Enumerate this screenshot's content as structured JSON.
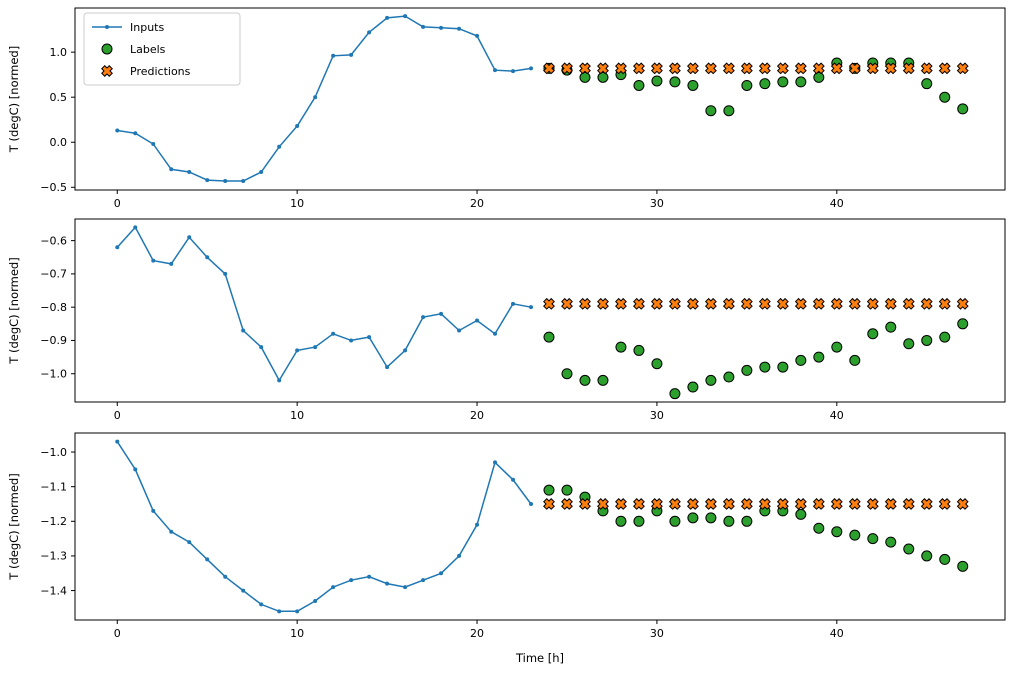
{
  "figure": {
    "xlabel": "Time [h]",
    "ylabel": "T (degC) [normed]",
    "legend": {
      "position": "upper-left-subplot-1",
      "entries": [
        "Inputs",
        "Labels",
        "Predictions"
      ]
    },
    "colors": {
      "inputs": "#1f77b4",
      "labels": "#2ca02c",
      "predictions": "#ff7f0e",
      "edge": "#000000",
      "legend_border": "#cccccc",
      "background": "#ffffff"
    }
  },
  "chart_data": [
    {
      "type": "line",
      "title": "",
      "ylabel": "T (degC) [normed]",
      "xlim": [
        -2.35,
        49.35
      ],
      "ylim": [
        -0.53,
        1.49
      ],
      "xticks": [
        0,
        10,
        20,
        30,
        40
      ],
      "yticks": [
        -0.5,
        0.0,
        0.5,
        1.0
      ],
      "grid": false,
      "series": [
        {
          "name": "Inputs",
          "marker": "dot-line",
          "x": [
            0,
            1,
            2,
            3,
            4,
            5,
            6,
            7,
            8,
            9,
            10,
            11,
            12,
            13,
            14,
            15,
            16,
            17,
            18,
            19,
            20,
            21,
            22,
            23
          ],
          "y": [
            0.13,
            0.1,
            -0.02,
            -0.3,
            -0.33,
            -0.42,
            -0.43,
            -0.43,
            -0.33,
            -0.05,
            0.18,
            0.5,
            0.96,
            0.97,
            1.22,
            1.38,
            1.4,
            1.28,
            1.27,
            1.26,
            1.18,
            0.8,
            0.79,
            0.82
          ]
        },
        {
          "name": "Labels",
          "marker": "circle",
          "x": [
            24,
            25,
            26,
            27,
            28,
            29,
            30,
            31,
            32,
            33,
            34,
            35,
            36,
            37,
            38,
            39,
            40,
            41,
            42,
            43,
            44,
            45,
            46,
            47
          ],
          "y": [
            0.82,
            0.8,
            0.72,
            0.72,
            0.75,
            0.63,
            0.68,
            0.67,
            0.63,
            0.35,
            0.35,
            0.63,
            0.65,
            0.67,
            0.67,
            0.72,
            0.88,
            0.82,
            0.88,
            0.88,
            0.88,
            0.65,
            0.5,
            0.37
          ]
        },
        {
          "name": "Predictions",
          "marker": "X",
          "x": [
            24,
            25,
            26,
            27,
            28,
            29,
            30,
            31,
            32,
            33,
            34,
            35,
            36,
            37,
            38,
            39,
            40,
            41,
            42,
            43,
            44,
            45,
            46,
            47
          ],
          "y": [
            0.82,
            0.82,
            0.82,
            0.82,
            0.82,
            0.82,
            0.82,
            0.82,
            0.82,
            0.82,
            0.82,
            0.82,
            0.82,
            0.82,
            0.82,
            0.82,
            0.82,
            0.82,
            0.82,
            0.82,
            0.82,
            0.82,
            0.82,
            0.82
          ]
        }
      ]
    },
    {
      "type": "line",
      "title": "",
      "ylabel": "T (degC) [normed]",
      "xlim": [
        -2.35,
        49.35
      ],
      "ylim": [
        -1.085,
        -0.535
      ],
      "xticks": [
        0,
        10,
        20,
        30,
        40
      ],
      "yticks": [
        -0.6,
        -0.7,
        -0.8,
        -0.9,
        -1.0
      ],
      "grid": false,
      "series": [
        {
          "name": "Inputs",
          "marker": "dot-line",
          "x": [
            0,
            1,
            2,
            3,
            4,
            5,
            6,
            7,
            8,
            9,
            10,
            11,
            12,
            13,
            14,
            15,
            16,
            17,
            18,
            19,
            20,
            21,
            22,
            23
          ],
          "y": [
            -0.62,
            -0.56,
            -0.66,
            -0.67,
            -0.59,
            -0.65,
            -0.7,
            -0.87,
            -0.92,
            -1.02,
            -0.93,
            -0.92,
            -0.88,
            -0.9,
            -0.89,
            -0.98,
            -0.93,
            -0.83,
            -0.82,
            -0.87,
            -0.84,
            -0.88,
            -0.79,
            -0.8
          ]
        },
        {
          "name": "Labels",
          "marker": "circle",
          "x": [
            24,
            25,
            26,
            27,
            28,
            29,
            30,
            31,
            32,
            33,
            34,
            35,
            36,
            37,
            38,
            39,
            40,
            41,
            42,
            43,
            44,
            45,
            46,
            47
          ],
          "y": [
            -0.89,
            -1.0,
            -1.02,
            -1.02,
            -0.92,
            -0.93,
            -0.97,
            -1.06,
            -1.04,
            -1.02,
            -1.01,
            -0.99,
            -0.98,
            -0.98,
            -0.96,
            -0.95,
            -0.92,
            -0.96,
            -0.88,
            -0.86,
            -0.91,
            -0.9,
            -0.89,
            -0.85
          ]
        },
        {
          "name": "Predictions",
          "marker": "X",
          "x": [
            24,
            25,
            26,
            27,
            28,
            29,
            30,
            31,
            32,
            33,
            34,
            35,
            36,
            37,
            38,
            39,
            40,
            41,
            42,
            43,
            44,
            45,
            46,
            47
          ],
          "y": [
            -0.79,
            -0.79,
            -0.79,
            -0.79,
            -0.79,
            -0.79,
            -0.79,
            -0.79,
            -0.79,
            -0.79,
            -0.79,
            -0.79,
            -0.79,
            -0.79,
            -0.79,
            -0.79,
            -0.79,
            -0.79,
            -0.79,
            -0.79,
            -0.79,
            -0.79,
            -0.79,
            -0.79
          ]
        }
      ]
    },
    {
      "type": "line",
      "title": "",
      "ylabel": "T (degC) [normed]",
      "xlim": [
        -2.35,
        49.35
      ],
      "ylim": [
        -1.485,
        -0.945
      ],
      "xticks": [
        0,
        10,
        20,
        30,
        40
      ],
      "yticks": [
        -1.0,
        -1.1,
        -1.2,
        -1.3,
        -1.4
      ],
      "grid": false,
      "series": [
        {
          "name": "Inputs",
          "marker": "dot-line",
          "x": [
            0,
            1,
            2,
            3,
            4,
            5,
            6,
            7,
            8,
            9,
            10,
            11,
            12,
            13,
            14,
            15,
            16,
            17,
            18,
            19,
            20,
            21,
            22,
            23
          ],
          "y": [
            -0.97,
            -1.05,
            -1.17,
            -1.23,
            -1.26,
            -1.31,
            -1.36,
            -1.4,
            -1.44,
            -1.46,
            -1.46,
            -1.43,
            -1.39,
            -1.37,
            -1.36,
            -1.38,
            -1.39,
            -1.37,
            -1.35,
            -1.3,
            -1.21,
            -1.03,
            -1.08,
            -1.15
          ]
        },
        {
          "name": "Labels",
          "marker": "circle",
          "x": [
            24,
            25,
            26,
            27,
            28,
            29,
            30,
            31,
            32,
            33,
            34,
            35,
            36,
            37,
            38,
            39,
            40,
            41,
            42,
            43,
            44,
            45,
            46,
            47
          ],
          "y": [
            -1.11,
            -1.11,
            -1.13,
            -1.17,
            -1.2,
            -1.2,
            -1.17,
            -1.2,
            -1.19,
            -1.19,
            -1.2,
            -1.2,
            -1.17,
            -1.17,
            -1.18,
            -1.22,
            -1.23,
            -1.24,
            -1.25,
            -1.26,
            -1.28,
            -1.3,
            -1.31,
            -1.33
          ]
        },
        {
          "name": "Predictions",
          "marker": "X",
          "x": [
            24,
            25,
            26,
            27,
            28,
            29,
            30,
            31,
            32,
            33,
            34,
            35,
            36,
            37,
            38,
            39,
            40,
            41,
            42,
            43,
            44,
            45,
            46,
            47
          ],
          "y": [
            -1.15,
            -1.15,
            -1.15,
            -1.15,
            -1.15,
            -1.15,
            -1.15,
            -1.15,
            -1.15,
            -1.15,
            -1.15,
            -1.15,
            -1.15,
            -1.15,
            -1.15,
            -1.15,
            -1.15,
            -1.15,
            -1.15,
            -1.15,
            -1.15,
            -1.15,
            -1.15,
            -1.15
          ]
        }
      ]
    }
  ]
}
